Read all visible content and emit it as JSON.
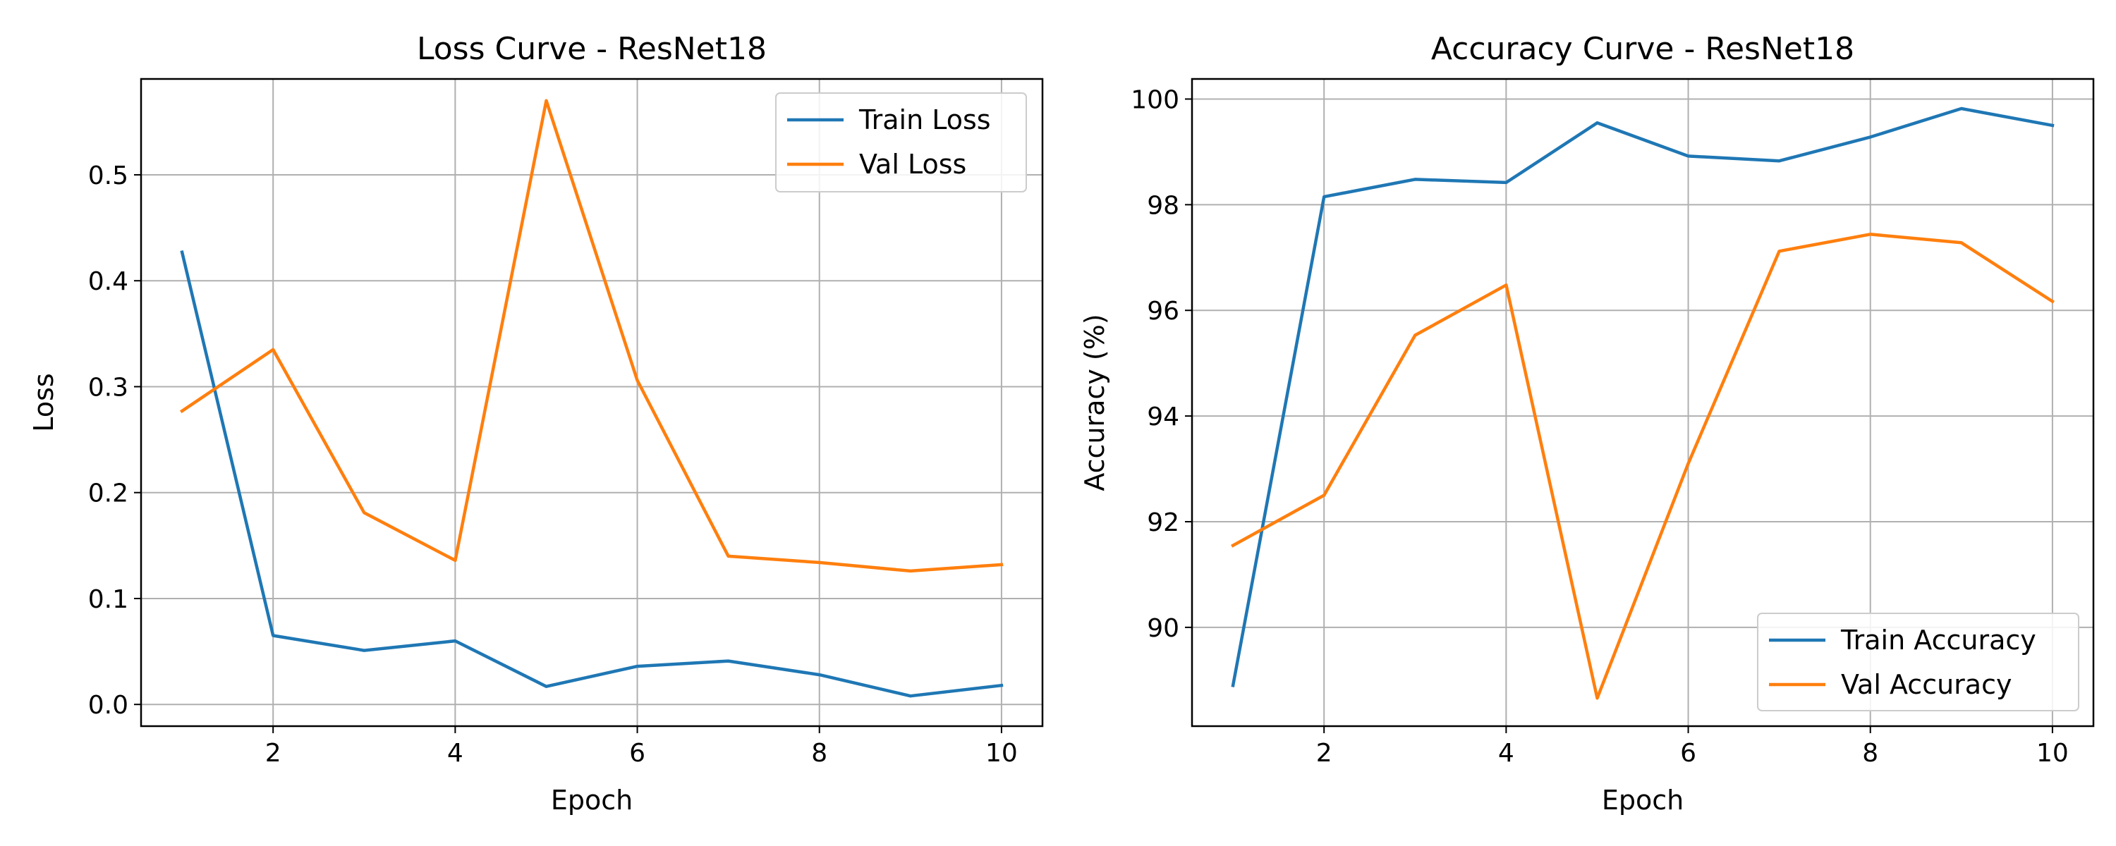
{
  "chart_data": [
    {
      "type": "line",
      "title": "Loss Curve - ResNet18",
      "xlabel": "Epoch",
      "ylabel": "Loss",
      "x": [
        1,
        2,
        3,
        4,
        5,
        6,
        7,
        8,
        9,
        10
      ],
      "xlim": [
        0.55,
        10.45
      ],
      "ylim": [
        -0.0205,
        0.5905
      ],
      "xticks": [
        2,
        4,
        6,
        8,
        10
      ],
      "yticks": [
        0.0,
        0.1,
        0.2,
        0.3,
        0.4,
        0.5
      ],
      "yticklabels": [
        "0.0",
        "0.1",
        "0.2",
        "0.3",
        "0.4",
        "0.5"
      ],
      "grid": true,
      "legend_position": "top-right",
      "series": [
        {
          "name": "Train Loss",
          "color": "#1f77b4",
          "values": [
            0.427,
            0.065,
            0.051,
            0.06,
            0.017,
            0.036,
            0.041,
            0.028,
            0.008,
            0.018
          ]
        },
        {
          "name": "Val Loss",
          "color": "#ff7f0e",
          "values": [
            0.277,
            0.335,
            0.181,
            0.136,
            0.57,
            0.306,
            0.14,
            0.134,
            0.126,
            0.132
          ]
        }
      ]
    },
    {
      "type": "line",
      "title": "Accuracy Curve - ResNet18",
      "xlabel": "Epoch",
      "ylabel": "Accuracy (%)",
      "x": [
        1,
        2,
        3,
        4,
        5,
        6,
        7,
        8,
        9,
        10
      ],
      "xlim": [
        0.55,
        10.45
      ],
      "ylim": [
        88.13,
        100.38
      ],
      "xticks": [
        2,
        4,
        6,
        8,
        10
      ],
      "yticks": [
        90,
        92,
        94,
        96,
        98,
        100
      ],
      "yticklabels": [
        "90",
        "92",
        "94",
        "96",
        "98",
        "100"
      ],
      "grid": true,
      "legend_position": "bottom-right",
      "series": [
        {
          "name": "Train Accuracy",
          "color": "#1f77b4",
          "values": [
            88.9,
            98.15,
            98.48,
            98.42,
            99.55,
            98.92,
            98.83,
            99.28,
            99.82,
            99.5
          ]
        },
        {
          "name": "Val Accuracy",
          "color": "#ff7f0e",
          "values": [
            91.55,
            92.5,
            95.53,
            96.48,
            88.66,
            93.1,
            97.12,
            97.44,
            97.28,
            96.17
          ]
        }
      ]
    }
  ]
}
